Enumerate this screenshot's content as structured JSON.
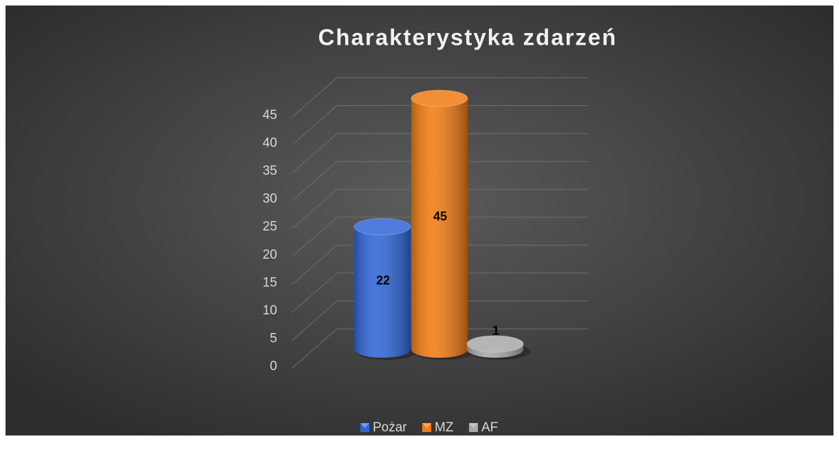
{
  "chart_data": {
    "type": "bar3d",
    "title": "Charakterystyka zdarzeń",
    "series": [
      {
        "name": "Pożar",
        "color": "#2f66d8",
        "values": [
          22
        ]
      },
      {
        "name": "MZ",
        "color": "#f27b12",
        "values": [
          45
        ]
      },
      {
        "name": "AF",
        "color": "#a8a8a8",
        "values": [
          1
        ]
      }
    ],
    "ylim": [
      0,
      45
    ],
    "yticks": [
      0,
      5,
      10,
      15,
      20,
      25,
      30,
      35,
      40,
      45
    ],
    "grid": true,
    "legend": "bottom"
  }
}
